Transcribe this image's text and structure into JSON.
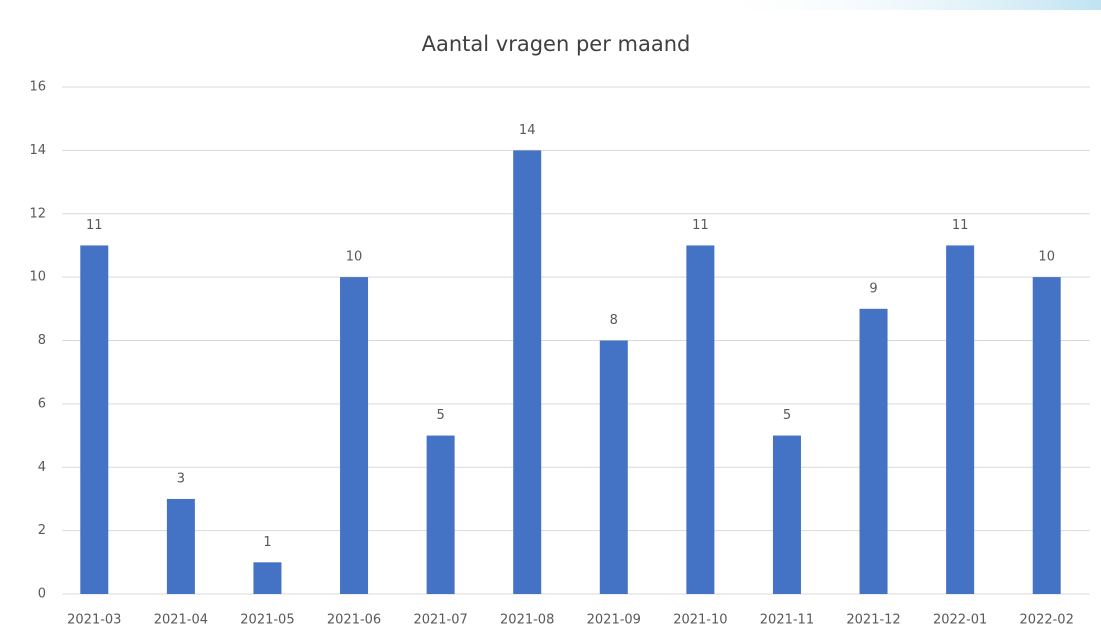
{
  "chart_data": {
    "type": "bar",
    "title": "Aantal vragen per maand",
    "categories": [
      "2021-03",
      "2021-04",
      "2021-05",
      "2021-06",
      "2021-07",
      "2021-08",
      "2021-09",
      "2021-10",
      "2021-11",
      "2021-12",
      "2022-01",
      "2022-02"
    ],
    "values": [
      11,
      3,
      1,
      10,
      5,
      14,
      8,
      11,
      5,
      9,
      11,
      10
    ],
    "color": "#4472c4",
    "ylim": [
      0,
      16
    ],
    "yticks": [
      0,
      2,
      4,
      6,
      8,
      10,
      12,
      14,
      16
    ],
    "grid": true
  }
}
